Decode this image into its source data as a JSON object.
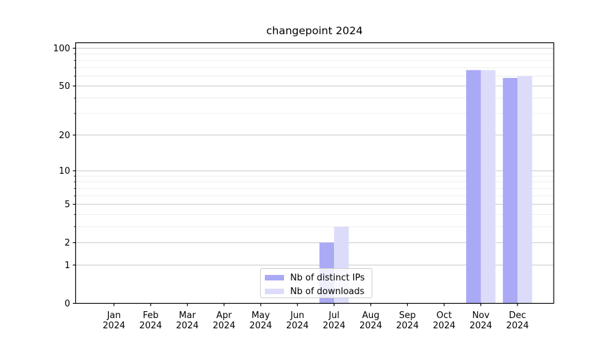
{
  "chart_data": {
    "type": "bar",
    "title": "changepoint 2024",
    "x_categories": [
      "Jan",
      "Feb",
      "Mar",
      "Apr",
      "May",
      "Jun",
      "Jul",
      "Aug",
      "Sep",
      "Oct",
      "Nov",
      "Dec"
    ],
    "x_year_line": "2024",
    "series": [
      {
        "name": "Nb of distinct IPs",
        "color": "#a9a9f5",
        "values": [
          0,
          0,
          0,
          0,
          0,
          0,
          2,
          0,
          0,
          0,
          67,
          58
        ]
      },
      {
        "name": "Nb of downloads",
        "color": "#dcdcfa",
        "values": [
          0,
          0,
          0,
          0,
          0,
          0,
          3,
          0,
          0,
          0,
          67,
          60
        ]
      }
    ],
    "y_scale": "log1p",
    "y_major_ticks": [
      0,
      1,
      2,
      5,
      10,
      20,
      50,
      100
    ],
    "y_minor_ticks": [
      3,
      4,
      6,
      7,
      8,
      9,
      30,
      40,
      60,
      70,
      80,
      90
    ],
    "ylim": [
      0,
      110.5
    ],
    "grid": true,
    "legend_position": "lower center",
    "colors": {
      "grid_major": "#c8c8c8",
      "grid_minor": "#ebebeb",
      "axis": "#000000",
      "background": "#ffffff"
    }
  }
}
